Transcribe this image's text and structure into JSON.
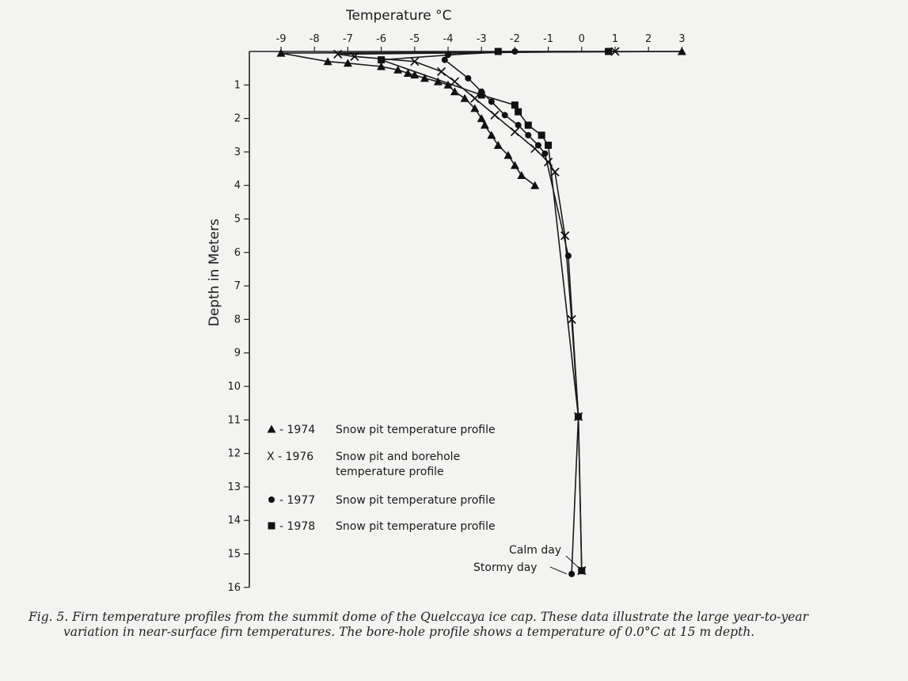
{
  "chart_data": {
    "type": "scatter",
    "title": "",
    "xlabel": "Temperature °C",
    "ylabel": "Depth in Meters",
    "xlim": [
      -9,
      3
    ],
    "ylim": [
      0,
      16
    ],
    "y_inverted": true,
    "x_axis_position": "top",
    "x_ticks": [
      "-9",
      "-8",
      "-7",
      "-6",
      "-5",
      "-4",
      "-3",
      "-2",
      "-1",
      "0",
      "1",
      "2",
      "3"
    ],
    "y_ticks": [
      "1",
      "2",
      "3",
      "4",
      "5",
      "6",
      "7",
      "8",
      "9",
      "10",
      "11",
      "12",
      "13",
      "14",
      "15",
      "16"
    ],
    "grid": false,
    "legend_position": "lower-left",
    "series": [
      {
        "name": "1974",
        "legend_label": "- 1974",
        "legend_desc": "Snow pit temperature profile",
        "marker": "triangle",
        "points": [
          [
            3,
            0.0
          ],
          [
            -9.0,
            0.05
          ],
          [
            -7.6,
            0.3
          ],
          [
            -7.0,
            0.35
          ],
          [
            -6.0,
            0.45
          ],
          [
            -5.5,
            0.55
          ],
          [
            -5.2,
            0.65
          ],
          [
            -5.0,
            0.7
          ],
          [
            -4.7,
            0.8
          ],
          [
            -4.3,
            0.9
          ],
          [
            -4.0,
            1.0
          ],
          [
            -3.8,
            1.2
          ],
          [
            -3.5,
            1.4
          ],
          [
            -3.2,
            1.7
          ],
          [
            -3.0,
            2.0
          ],
          [
            -2.9,
            2.2
          ],
          [
            -2.7,
            2.5
          ],
          [
            -2.5,
            2.8
          ],
          [
            -2.2,
            3.1
          ],
          [
            -2.0,
            3.4
          ],
          [
            -1.8,
            3.7
          ],
          [
            -1.4,
            4.0
          ]
        ]
      },
      {
        "name": "1976",
        "legend_label": "X - 1976",
        "legend_desc_lines": [
          "Snow pit and borehole",
          "temperature profile"
        ],
        "marker": "x",
        "points": [
          [
            1.0,
            0.0
          ],
          [
            -7.3,
            0.08
          ],
          [
            -6.8,
            0.15
          ],
          [
            -5.0,
            0.3
          ],
          [
            -4.2,
            0.6
          ],
          [
            -3.8,
            0.9
          ],
          [
            -3.2,
            1.4
          ],
          [
            -2.6,
            1.9
          ],
          [
            -2.0,
            2.4
          ],
          [
            -1.4,
            2.9
          ],
          [
            -1.0,
            3.3
          ],
          [
            -0.8,
            3.6
          ],
          [
            -0.5,
            5.5
          ],
          [
            -0.3,
            8.0
          ],
          [
            -0.1,
            10.9
          ],
          [
            0.0,
            15.5
          ]
        ]
      },
      {
        "name": "1977",
        "legend_label": "- 1977",
        "legend_desc": "Snow pit temperature profile",
        "marker": "circle",
        "points": [
          [
            -2.0,
            0.0
          ],
          [
            -4.0,
            0.1
          ],
          [
            -4.1,
            0.25
          ],
          [
            -3.4,
            0.8
          ],
          [
            -3.0,
            1.2
          ],
          [
            -2.7,
            1.5
          ],
          [
            -2.3,
            1.9
          ],
          [
            -1.9,
            2.2
          ],
          [
            -1.6,
            2.5
          ],
          [
            -1.3,
            2.8
          ],
          [
            -1.1,
            3.05
          ],
          [
            -0.4,
            6.1
          ],
          [
            -0.1,
            10.9
          ],
          [
            -0.3,
            15.6
          ]
        ]
      },
      {
        "name": "1978",
        "legend_label": "- 1978",
        "legend_desc": "Snow pit temperature profile",
        "marker": "square",
        "points": [
          [
            0.8,
            0.0
          ],
          [
            -2.5,
            0.0
          ],
          [
            -6.0,
            0.25
          ],
          [
            -3.0,
            1.3
          ],
          [
            -2.0,
            1.6
          ],
          [
            -1.9,
            1.8
          ],
          [
            -1.6,
            2.2
          ],
          [
            -1.2,
            2.5
          ],
          [
            -1.0,
            2.8
          ],
          [
            -0.1,
            10.9
          ],
          [
            0.0,
            15.5
          ]
        ]
      }
    ],
    "annotations": [
      {
        "text": "Calm day",
        "at": [
          0.0,
          15.5
        ]
      },
      {
        "text": "Stormy day",
        "at": [
          -0.3,
          15.6
        ]
      }
    ]
  },
  "caption": {
    "line1": "Fig. 5.  Firn temperature profiles from the summit dome of the Quelccaya ice cap.  These data illustrate the large year-to-year",
    "line2": "variation in near-surface firn temperatures.  The bore-hole profile shows a temperature of 0.0°C at 15 m depth."
  }
}
